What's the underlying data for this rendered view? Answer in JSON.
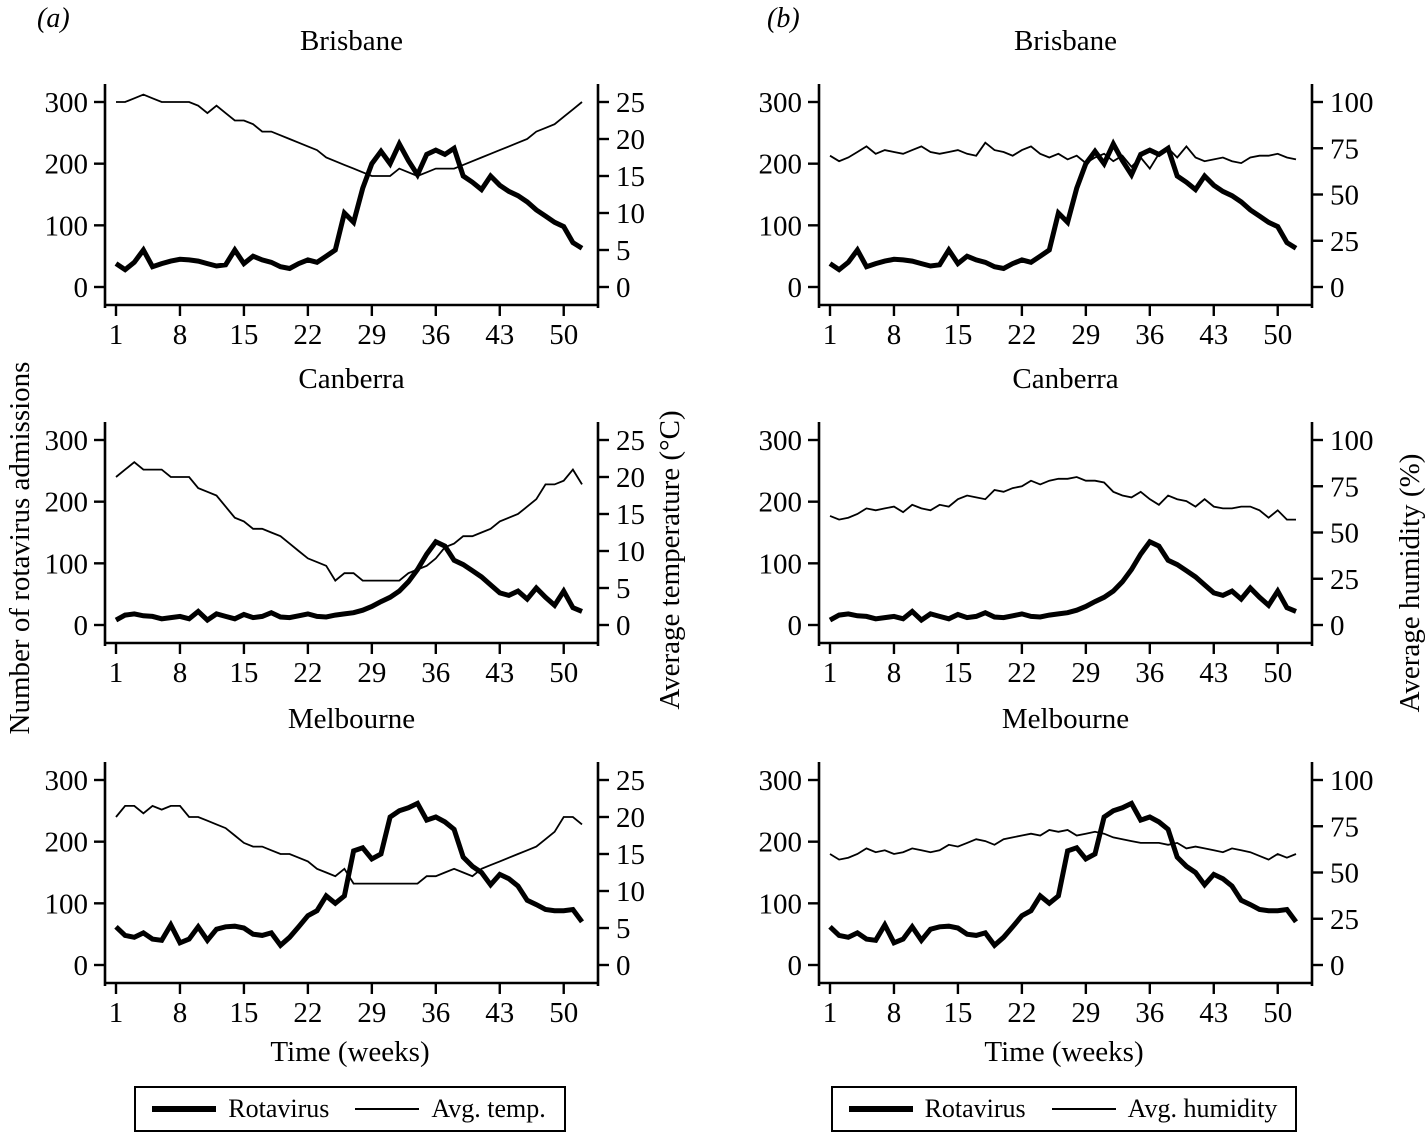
{
  "panel_labels": {
    "a": "(a)",
    "b": "(b)"
  },
  "chart_data": [
    {
      "type": "line",
      "panel": "a",
      "title": "Brisbane",
      "x_label": "Time (weeks)",
      "x_ticks": [
        1,
        8,
        15,
        22,
        29,
        36,
        43,
        50
      ],
      "x_range": [
        1,
        52
      ],
      "y_left": {
        "label": "Number of rotavirus admissions",
        "ticks": [
          0,
          100,
          200,
          300
        ],
        "range": [
          0,
          300
        ]
      },
      "y_right": {
        "label": "Average temperature (°C)",
        "ticks": [
          0,
          5,
          10,
          15,
          20,
          25
        ],
        "range": [
          0,
          25
        ]
      },
      "series": [
        {
          "name": "Rotavirus",
          "axis": "left",
          "style": "thick",
          "values": [
            38,
            28,
            40,
            60,
            33,
            38,
            42,
            45,
            44,
            42,
            38,
            34,
            36,
            60,
            38,
            50,
            44,
            40,
            33,
            30,
            38,
            44,
            40,
            50,
            60,
            120,
            105,
            160,
            200,
            220,
            200,
            232,
            205,
            182,
            215,
            222,
            215,
            225,
            180,
            170,
            158,
            180,
            165,
            155,
            148,
            138,
            125,
            115,
            105,
            98,
            72,
            63
          ]
        },
        {
          "name": "Avg. temp.",
          "axis": "right",
          "style": "thin",
          "values": [
            25,
            25,
            25.5,
            26,
            25.5,
            25,
            25,
            25,
            25,
            24.5,
            23.5,
            24.5,
            23.5,
            22.5,
            22.5,
            22,
            21,
            21,
            20.5,
            20,
            19.5,
            19,
            18.5,
            17.5,
            17,
            16.5,
            16,
            15.5,
            15,
            15,
            15,
            16,
            15.5,
            15,
            15.5,
            16,
            16,
            16,
            16.5,
            17,
            17.5,
            18,
            18.5,
            19,
            19.5,
            20,
            21,
            21.5,
            22,
            23,
            24,
            25
          ]
        }
      ]
    },
    {
      "type": "line",
      "panel": "a",
      "title": "Canberra",
      "x_label": "Time (weeks)",
      "x_ticks": [
        1,
        8,
        15,
        22,
        29,
        36,
        43,
        50
      ],
      "x_range": [
        1,
        52
      ],
      "y_left": {
        "label": "Number of rotavirus admissions",
        "ticks": [
          0,
          100,
          200,
          300
        ],
        "range": [
          0,
          300
        ]
      },
      "y_right": {
        "label": "Average temperature (°C)",
        "ticks": [
          0,
          5,
          10,
          15,
          20,
          25
        ],
        "range": [
          0,
          25
        ]
      },
      "series": [
        {
          "name": "Rotavirus",
          "axis": "left",
          "style": "thick",
          "values": [
            8,
            16,
            18,
            15,
            14,
            10,
            12,
            14,
            10,
            22,
            8,
            18,
            14,
            10,
            17,
            12,
            14,
            20,
            13,
            12,
            15,
            18,
            14,
            13,
            16,
            18,
            20,
            24,
            30,
            38,
            45,
            55,
            70,
            90,
            115,
            135,
            128,
            105,
            98,
            88,
            78,
            65,
            52,
            48,
            55,
            42,
            60,
            45,
            32,
            55,
            28,
            22
          ]
        },
        {
          "name": "Avg. temp.",
          "axis": "right",
          "style": "thin",
          "values": [
            20,
            21,
            22,
            21,
            21,
            21,
            20,
            20,
            20,
            18.5,
            18,
            17.5,
            16,
            14.5,
            14,
            13,
            13,
            12.5,
            12,
            11,
            10,
            9,
            8.5,
            8,
            6,
            7,
            7,
            6,
            6,
            6,
            6,
            6,
            7,
            7.5,
            8,
            9,
            10.5,
            11,
            12,
            12,
            12.5,
            13,
            14,
            14.5,
            15,
            16,
            17,
            19,
            19,
            19.5,
            21,
            19
          ]
        }
      ]
    },
    {
      "type": "line",
      "panel": "a",
      "title": "Melbourne",
      "x_label": "Time (weeks)",
      "x_ticks": [
        1,
        8,
        15,
        22,
        29,
        36,
        43,
        50
      ],
      "x_range": [
        1,
        52
      ],
      "y_left": {
        "label": "Number of rotavirus admissions",
        "ticks": [
          0,
          100,
          200,
          300
        ],
        "range": [
          0,
          300
        ]
      },
      "y_right": {
        "label": "Average temperature (°C)",
        "ticks": [
          0,
          5,
          10,
          15,
          20,
          25
        ],
        "range": [
          0,
          25
        ]
      },
      "series": [
        {
          "name": "Rotavirus",
          "axis": "left",
          "style": "thick",
          "values": [
            62,
            48,
            45,
            52,
            42,
            40,
            65,
            36,
            42,
            62,
            40,
            58,
            62,
            63,
            60,
            50,
            48,
            52,
            32,
            45,
            62,
            80,
            88,
            112,
            100,
            112,
            185,
            190,
            172,
            180,
            240,
            250,
            255,
            262,
            235,
            240,
            232,
            220,
            175,
            160,
            150,
            130,
            147,
            140,
            128,
            105,
            98,
            90,
            88,
            88,
            90,
            70
          ]
        },
        {
          "name": "Avg. temp.",
          "axis": "right",
          "style": "thin",
          "values": [
            20,
            21.5,
            21.5,
            20.5,
            21.5,
            21,
            21.5,
            21.5,
            20,
            20,
            19.5,
            19,
            18.5,
            17.5,
            16.5,
            16,
            16,
            15.5,
            15,
            15,
            14.5,
            14,
            13,
            12.5,
            12,
            13,
            11,
            11,
            11,
            11,
            11,
            11,
            11,
            11,
            12,
            12,
            12.5,
            13,
            12.5,
            12,
            13,
            13.5,
            14,
            14.5,
            15,
            15.5,
            16,
            17,
            18,
            20,
            20,
            19
          ]
        }
      ]
    },
    {
      "type": "line",
      "panel": "b",
      "title": "Brisbane",
      "x_label": "Time (weeks)",
      "x_ticks": [
        1,
        8,
        15,
        22,
        29,
        36,
        43,
        50
      ],
      "x_range": [
        1,
        52
      ],
      "y_left": {
        "label": "Number of rotavirus admissions",
        "ticks": [
          0,
          100,
          200,
          300
        ],
        "range": [
          0,
          300
        ]
      },
      "y_right": {
        "label": "Average humidity (%)",
        "ticks": [
          0,
          25,
          50,
          75,
          100
        ],
        "range": [
          0,
          100
        ]
      },
      "series": [
        {
          "name": "Rotavirus",
          "axis": "left",
          "style": "thick",
          "values": [
            38,
            28,
            40,
            60,
            33,
            38,
            42,
            45,
            44,
            42,
            38,
            34,
            36,
            60,
            38,
            50,
            44,
            40,
            33,
            30,
            38,
            44,
            40,
            50,
            60,
            120,
            105,
            160,
            200,
            220,
            200,
            232,
            205,
            182,
            215,
            222,
            215,
            225,
            180,
            170,
            158,
            180,
            165,
            155,
            148,
            138,
            125,
            115,
            105,
            98,
            72,
            63
          ]
        },
        {
          "name": "Avg. humidity",
          "axis": "right",
          "style": "thin",
          "values": [
            71,
            68,
            70,
            73,
            76,
            72,
            74,
            73,
            72,
            74,
            76,
            73,
            72,
            73,
            74,
            72,
            71,
            78,
            74,
            73,
            71,
            74,
            76,
            72,
            70,
            72,
            69,
            71,
            67,
            70,
            72,
            68,
            71,
            65,
            70,
            64,
            72,
            75,
            70,
            76,
            70,
            68,
            69,
            70,
            68,
            67,
            70,
            71,
            71,
            72,
            70,
            69
          ]
        }
      ]
    },
    {
      "type": "line",
      "panel": "b",
      "title": "Canberra",
      "x_label": "Time (weeks)",
      "x_ticks": [
        1,
        8,
        15,
        22,
        29,
        36,
        43,
        50
      ],
      "x_range": [
        1,
        52
      ],
      "y_left": {
        "label": "Number of rotavirus admissions",
        "ticks": [
          0,
          100,
          200,
          300
        ],
        "range": [
          0,
          300
        ]
      },
      "y_right": {
        "label": "Average humidity (%)",
        "ticks": [
          0,
          25,
          50,
          75,
          100
        ],
        "range": [
          0,
          100
        ]
      },
      "series": [
        {
          "name": "Rotavirus",
          "axis": "left",
          "style": "thick",
          "values": [
            8,
            16,
            18,
            15,
            14,
            10,
            12,
            14,
            10,
            22,
            8,
            18,
            14,
            10,
            17,
            12,
            14,
            20,
            13,
            12,
            15,
            18,
            14,
            13,
            16,
            18,
            20,
            24,
            30,
            38,
            45,
            55,
            70,
            90,
            115,
            135,
            128,
            105,
            98,
            88,
            78,
            65,
            52,
            48,
            55,
            42,
            60,
            45,
            32,
            55,
            28,
            22
          ]
        },
        {
          "name": "Avg. humidity",
          "axis": "right",
          "style": "thin",
          "values": [
            59,
            57,
            58,
            60,
            63,
            62,
            63,
            64,
            61,
            65,
            63,
            62,
            65,
            64,
            68,
            70,
            69,
            68,
            73,
            72,
            74,
            75,
            78,
            76,
            78,
            79,
            79,
            80,
            78,
            78,
            77,
            72,
            70,
            69,
            72,
            68,
            65,
            70,
            68,
            67,
            64,
            68,
            64,
            63,
            63,
            64,
            64,
            62,
            58,
            62,
            57,
            57
          ]
        }
      ]
    },
    {
      "type": "line",
      "panel": "b",
      "title": "Melbourne",
      "x_label": "Time (weeks)",
      "x_ticks": [
        1,
        8,
        15,
        22,
        29,
        36,
        43,
        50
      ],
      "x_range": [
        1,
        52
      ],
      "y_left": {
        "label": "Number of rotavirus admissions",
        "ticks": [
          0,
          100,
          200,
          300
        ],
        "range": [
          0,
          300
        ]
      },
      "y_right": {
        "label": "Average humidity (%)",
        "ticks": [
          0,
          25,
          50,
          75,
          100
        ],
        "range": [
          0,
          100
        ]
      },
      "series": [
        {
          "name": "Rotavirus",
          "axis": "left",
          "style": "thick",
          "values": [
            62,
            48,
            45,
            52,
            42,
            40,
            65,
            36,
            42,
            62,
            40,
            58,
            62,
            63,
            60,
            50,
            48,
            52,
            32,
            45,
            62,
            80,
            88,
            112,
            100,
            112,
            185,
            190,
            172,
            180,
            240,
            250,
            255,
            262,
            235,
            240,
            232,
            220,
            175,
            160,
            150,
            130,
            147,
            140,
            128,
            105,
            98,
            90,
            88,
            88,
            90,
            70
          ]
        },
        {
          "name": "Avg. humidity",
          "axis": "right",
          "style": "thin",
          "values": [
            60,
            57,
            58,
            60,
            63,
            61,
            62,
            60,
            61,
            63,
            62,
            61,
            62,
            65,
            64,
            66,
            68,
            67,
            65,
            68,
            69,
            70,
            71,
            70,
            73,
            72,
            73,
            70,
            71,
            72,
            71,
            69,
            68,
            67,
            66,
            66,
            66,
            65,
            66,
            63,
            64,
            63,
            62,
            61,
            63,
            62,
            61,
            59,
            57,
            60,
            58,
            60
          ]
        }
      ]
    }
  ]
}
